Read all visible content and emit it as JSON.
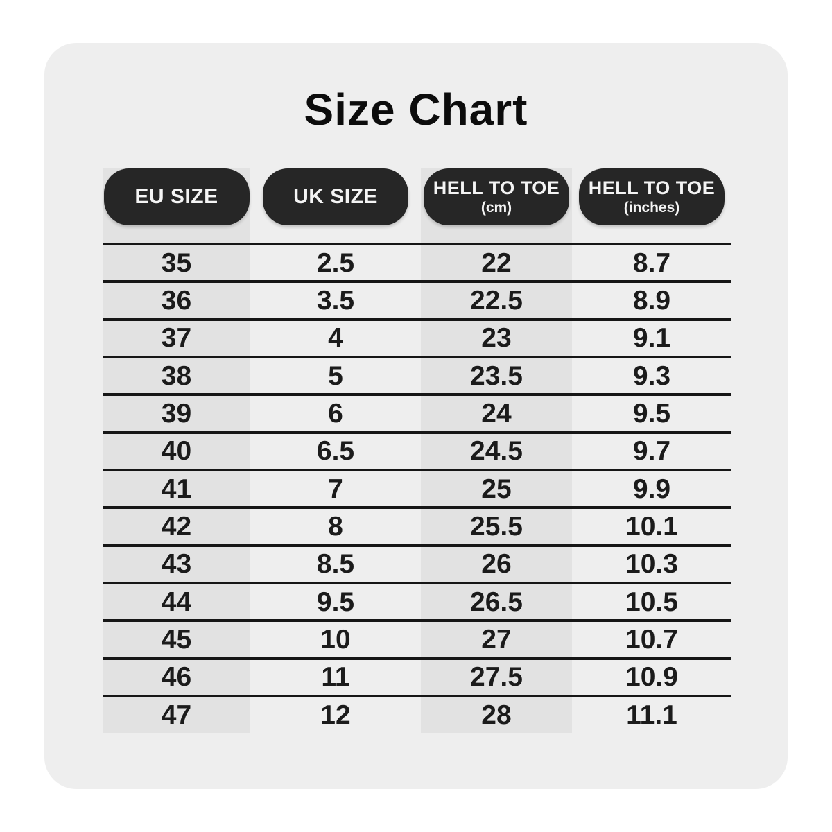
{
  "title": "Size Chart",
  "colors": {
    "card_bg": "#eeeeee",
    "stripe": "#e2e2e2",
    "badge_bg": "#262626",
    "badge_text": "#f4f4f4",
    "text": "#1b1b1b",
    "line": "#161616",
    "title": "#0c0c0c"
  },
  "header": {
    "columns": [
      {
        "label": "EU SIZE",
        "sub": ""
      },
      {
        "label": "UK SIZE",
        "sub": ""
      },
      {
        "label": "HELL TO TOE",
        "sub": "(cm)"
      },
      {
        "label": "HELL TO TOE",
        "sub": "(inches)"
      }
    ]
  },
  "chart_data": {
    "type": "table",
    "title": "Size Chart",
    "columns": [
      "EU SIZE",
      "UK SIZE",
      "HELL TO TOE (cm)",
      "HELL TO TOE (inches)"
    ],
    "rows": [
      [
        35,
        2.5,
        22,
        8.7
      ],
      [
        36,
        3.5,
        22.5,
        8.9
      ],
      [
        37,
        4,
        23,
        9.1
      ],
      [
        38,
        5,
        23.5,
        9.3
      ],
      [
        39,
        6,
        24,
        9.5
      ],
      [
        40,
        6.5,
        24.5,
        9.7
      ],
      [
        41,
        7,
        25,
        9.9
      ],
      [
        42,
        8,
        25.5,
        10.1
      ],
      [
        43,
        8.5,
        26,
        10.3
      ],
      [
        44,
        9.5,
        26.5,
        10.5
      ],
      [
        45,
        10,
        27,
        10.7
      ],
      [
        46,
        11,
        27.5,
        10.9
      ],
      [
        47,
        12,
        28,
        11.1
      ]
    ]
  }
}
